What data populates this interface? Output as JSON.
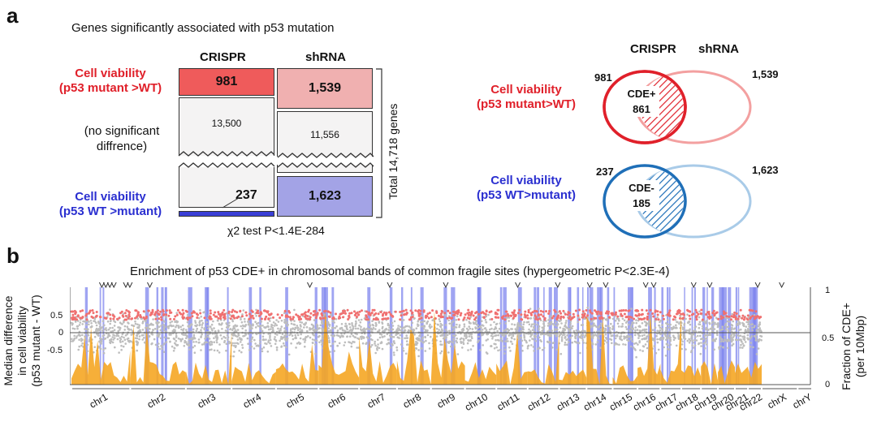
{
  "panel_a": {
    "letter": "a",
    "title": "Genes significantly associated with p53 mutation",
    "col_crispr": "CRISPR",
    "col_shrna": "shRNA",
    "row_mutant_l1": "Cell viability",
    "row_mutant_l2": "(p53 mutant >WT)",
    "row_nosig_l1": "(no significant",
    "row_nosig_l2": "diffrence)",
    "row_wt_l1": "Cell viability",
    "row_wt_l2": "(p53 WT >mutant)",
    "crispr_mutant": "981",
    "shrna_mutant": "1,539",
    "crispr_nosig": "13,500",
    "shrna_nosig": "11,556",
    "crispr_wt": "237",
    "shrna_wt": "1,623",
    "total_genes": "Total 14,718 genes",
    "chi_test": "χ2 test P<1.4E-284"
  },
  "venn": {
    "crispr_label": "CRISPR",
    "shrna_label": "shRNA",
    "top_label_l1": "Cell viability",
    "top_label_l2": "(p53 mutant>WT)",
    "top_left_count": "981",
    "top_right_count": "1,539",
    "top_inner_l1": "CDE+",
    "top_inner_l2": "861",
    "bottom_label_l1": "Cell viability",
    "bottom_label_l2": "(p53 WT>mutant)",
    "bottom_left_count": "237",
    "bottom_right_count": "1,623",
    "bottom_inner_l1": "CDE-",
    "bottom_inner_l2": "185"
  },
  "panel_b": {
    "letter": "b",
    "title": "Enrichment of p53 CDE+ in chromosomal bands of common fragile sites (hypergeometric P<2.3E-4)",
    "ylabel_left_l1": "Median difference",
    "ylabel_left_l2": "in cell viability",
    "ylabel_left_l3": "(p53 mutant - WT)",
    "ylabel_right_l1": "Fraction of CDE+",
    "ylabel_right_l2": "(per 10Mbp)",
    "left_ticks": [
      "0.5",
      "0",
      "-0.5"
    ],
    "right_ticks": [
      "1",
      "0.5",
      "0"
    ],
    "chromosomes": [
      "chr1",
      "chr2",
      "chr3",
      "chr4",
      "chr5",
      "chr6",
      "chr7",
      "chr8",
      "chr9",
      "chr10",
      "chr11",
      "chr12",
      "chr13",
      "chr14",
      "chr15",
      "chr16",
      "chr17",
      "chr18",
      "chr19",
      "chr20",
      "chr21",
      "chr22",
      "chrX",
      "chrY"
    ],
    "colors": {
      "red": "#e0202a",
      "blue": "#2a2fd0",
      "fragile": "#7f86ee",
      "orange": "#f5a623",
      "grey": "#bdbdbd",
      "pink": "#f07070"
    }
  }
}
